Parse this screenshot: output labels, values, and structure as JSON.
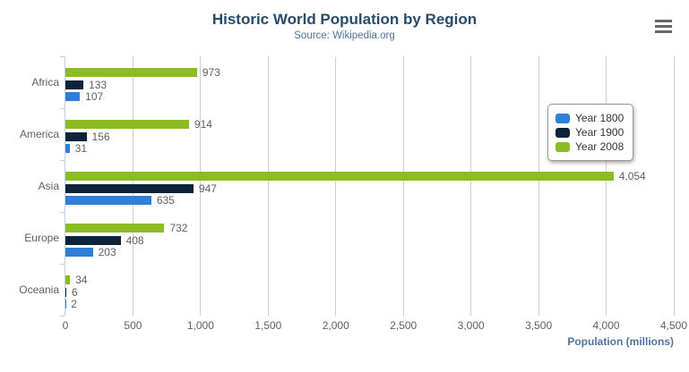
{
  "header": {
    "title": "Historic World Population by Region",
    "subtitle": "Source: Wikipedia.org"
  },
  "icons": {
    "export_menu": "hamburger-icon"
  },
  "chart_data": {
    "type": "bar",
    "orientation": "horizontal",
    "title": "Historic World Population by Region",
    "subtitle": "Source: Wikipedia.org",
    "categories": [
      "Africa",
      "America",
      "Asia",
      "Europe",
      "Oceania"
    ],
    "series": [
      {
        "name": "Year 1800",
        "color": "#2f7ed8",
        "values": [
          107,
          31,
          635,
          203,
          2
        ]
      },
      {
        "name": "Year 1900",
        "color": "#0d233a",
        "values": [
          133,
          156,
          947,
          408,
          6
        ]
      },
      {
        "name": "Year 2008",
        "color": "#8bbc21",
        "values": [
          973,
          914,
          4054,
          732,
          34
        ]
      }
    ],
    "display_order_top_to_bottom": [
      "Year 2008",
      "Year 1900",
      "Year 1800"
    ],
    "data_labels": true,
    "xlabel": "Population (millions)",
    "ylabel": "",
    "xlim": [
      0,
      4500
    ],
    "x_ticks": [
      0,
      500,
      1000,
      1500,
      2000,
      2500,
      3000,
      3500,
      4000,
      4500
    ],
    "x_tick_labels": [
      "0",
      "500",
      "1,000",
      "1,500",
      "2,000",
      "2,500",
      "3,000",
      "3,500",
      "4,000",
      "4,500"
    ],
    "grid": "vertical-on",
    "legend_position": "right"
  },
  "colors": {
    "title": "#274b6d",
    "subtitle": "#4d759e",
    "axis_title": "#4d759e",
    "labels": "#606060",
    "legend_text": "#333333",
    "gridline": "#cdcdcd",
    "category_axis_line": "#c0d0e0",
    "menu_icon": "#666666",
    "background": "#ffffff"
  }
}
